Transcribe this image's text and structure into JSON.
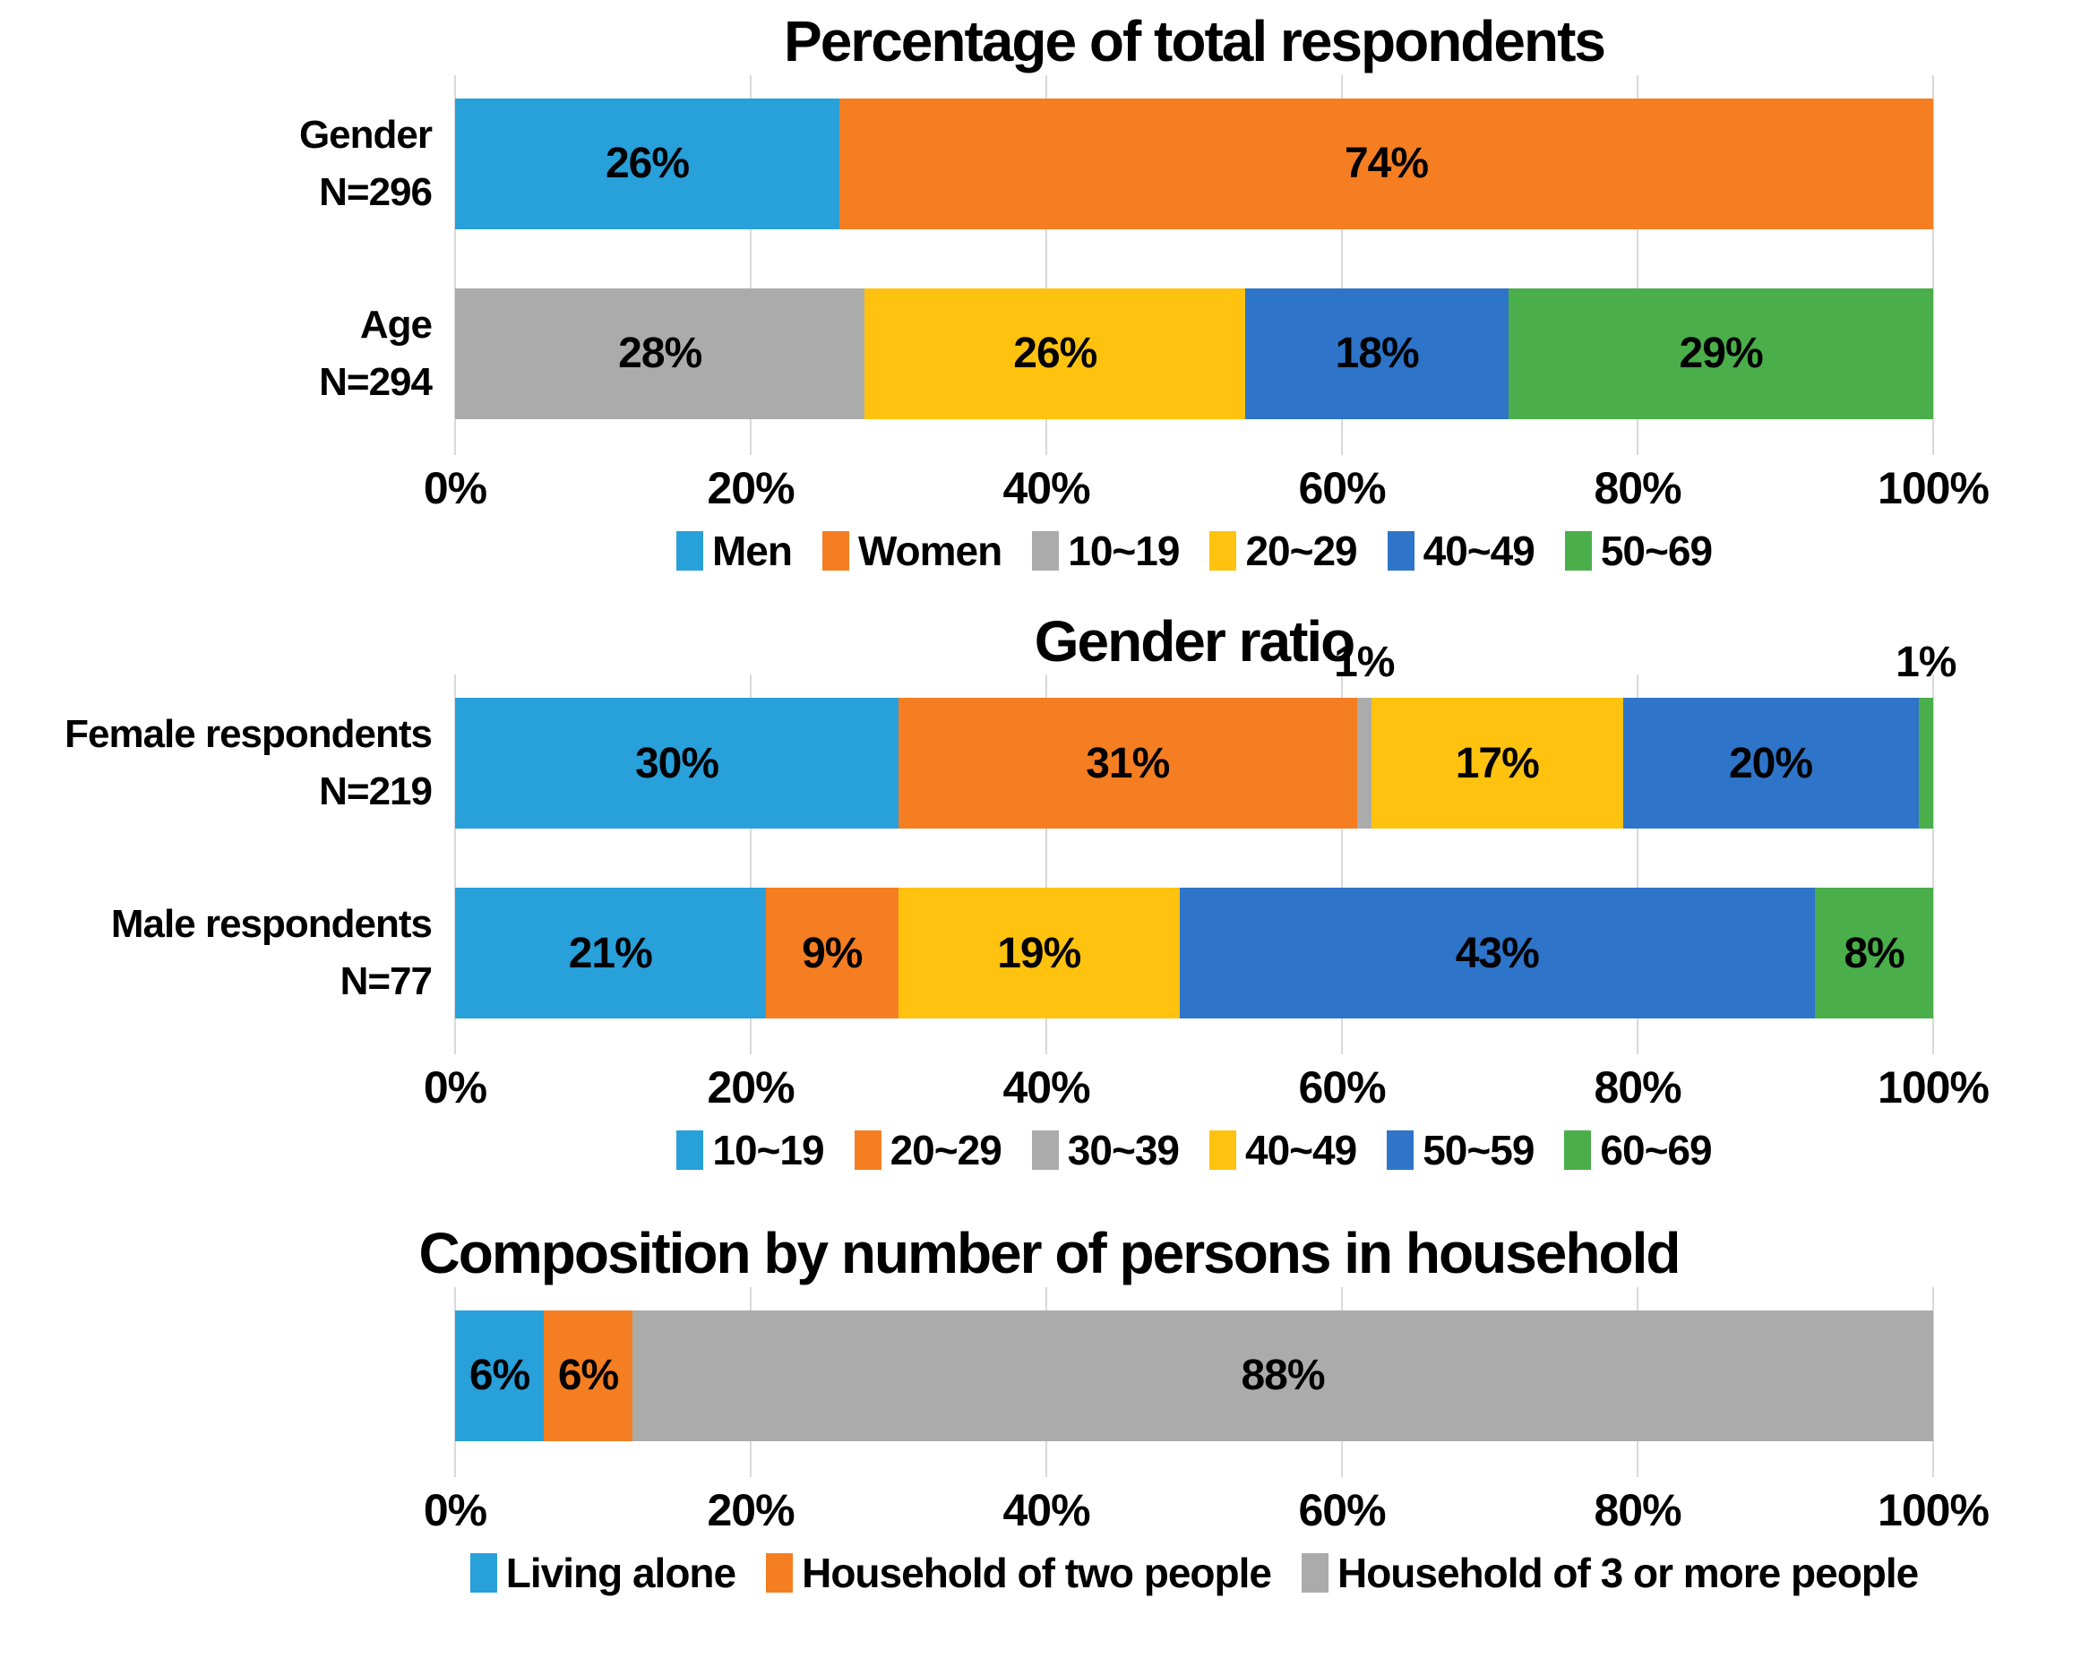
{
  "colors": {
    "lightblue": "#28A0DA",
    "orange": "#F57E22",
    "gray": "#ABABAB",
    "yellow": "#FFC20E",
    "blue": "#2E74C9",
    "green": "#4AAE4A",
    "gridline": "#D9D9D9"
  },
  "chart_data": [
    {
      "type": "bar",
      "variant": "horizontal-stacked",
      "title": "Percentage of total respondents",
      "xlim": [
        0,
        100
      ],
      "grid": true,
      "axis_ticks": [
        "0%",
        "20%",
        "40%",
        "60%",
        "80%",
        "100%"
      ],
      "rows": [
        {
          "label_lines": [
            "Gender",
            "N=296"
          ],
          "segments": [
            {
              "value": 26,
              "label": "26%",
              "color": "lightblue",
              "series": "Men"
            },
            {
              "value": 74,
              "label": "74%",
              "color": "orange",
              "series": "Women"
            }
          ]
        },
        {
          "label_lines": [
            "Age",
            "N=294"
          ],
          "segments": [
            {
              "value": 28,
              "label": "28%",
              "color": "gray",
              "series": "10~19"
            },
            {
              "value": 26,
              "label": "26%",
              "color": "yellow",
              "series": "20~29"
            },
            {
              "value": 18,
              "label": "18%",
              "color": "blue",
              "series": "40~49"
            },
            {
              "value": 29,
              "label": "29%",
              "color": "green",
              "series": "50~69"
            }
          ]
        }
      ],
      "legend": [
        {
          "label": "Men",
          "color": "lightblue"
        },
        {
          "label": "Women",
          "color": "orange"
        },
        {
          "label": "10~19",
          "color": "gray"
        },
        {
          "label": "20~29",
          "color": "yellow"
        },
        {
          "label": "40~49",
          "color": "blue"
        },
        {
          "label": "50~69",
          "color": "green"
        }
      ],
      "legend_position": "bottom"
    },
    {
      "type": "bar",
      "variant": "horizontal-stacked",
      "title": "Gender ratio",
      "xlim": [
        0,
        100
      ],
      "grid": true,
      "axis_ticks": [
        "0%",
        "20%",
        "40%",
        "60%",
        "80%",
        "100%"
      ],
      "rows": [
        {
          "label_lines": [
            "Female respondents",
            "N=219"
          ],
          "segments": [
            {
              "value": 30,
              "label": "30%",
              "color": "lightblue",
              "series": "10~19"
            },
            {
              "value": 31,
              "label": "31%",
              "color": "orange",
              "series": "20~29"
            },
            {
              "value": 1,
              "label": "1%",
              "color": "gray",
              "series": "30~39",
              "label_position": "above"
            },
            {
              "value": 17,
              "label": "17%",
              "color": "yellow",
              "series": "40~49"
            },
            {
              "value": 20,
              "label": "20%",
              "color": "blue",
              "series": "50~59"
            },
            {
              "value": 1,
              "label": "1%",
              "color": "green",
              "series": "60~69",
              "label_position": "above"
            }
          ]
        },
        {
          "label_lines": [
            "Male respondents",
            "N=77"
          ],
          "segments": [
            {
              "value": 21,
              "label": "21%",
              "color": "lightblue",
              "series": "10~19"
            },
            {
              "value": 9,
              "label": "9%",
              "color": "orange",
              "series": "20~29"
            },
            {
              "value": 19,
              "label": "19%",
              "color": "yellow",
              "series": "40~49"
            },
            {
              "value": 43,
              "label": "43%",
              "color": "blue",
              "series": "50~59"
            },
            {
              "value": 8,
              "label": "8%",
              "color": "green",
              "series": "60~69"
            }
          ]
        }
      ],
      "legend": [
        {
          "label": "10~19",
          "color": "lightblue"
        },
        {
          "label": "20~29",
          "color": "orange"
        },
        {
          "label": "30~39",
          "color": "gray"
        },
        {
          "label": "40~49",
          "color": "yellow"
        },
        {
          "label": "50~59",
          "color": "blue"
        },
        {
          "label": "60~69",
          "color": "green"
        }
      ],
      "legend_position": "bottom"
    },
    {
      "type": "bar",
      "variant": "horizontal-stacked",
      "title": "Composition by number of persons in household",
      "xlim": [
        0,
        100
      ],
      "grid": true,
      "axis_ticks": [
        "0%",
        "20%",
        "40%",
        "60%",
        "80%",
        "100%"
      ],
      "rows": [
        {
          "label_lines": [],
          "segments": [
            {
              "value": 6,
              "label": "6%",
              "color": "lightblue",
              "series": "Living alone"
            },
            {
              "value": 6,
              "label": "6%",
              "color": "orange",
              "series": "Household of two people"
            },
            {
              "value": 88,
              "label": "88%",
              "color": "gray",
              "series": "Household of 3 or more people"
            }
          ]
        }
      ],
      "legend": [
        {
          "label": "Living alone",
          "color": "lightblue"
        },
        {
          "label": "Household of two people",
          "color": "orange"
        },
        {
          "label": "Household of 3 or more people",
          "color": "gray"
        }
      ],
      "legend_position": "bottom"
    }
  ]
}
